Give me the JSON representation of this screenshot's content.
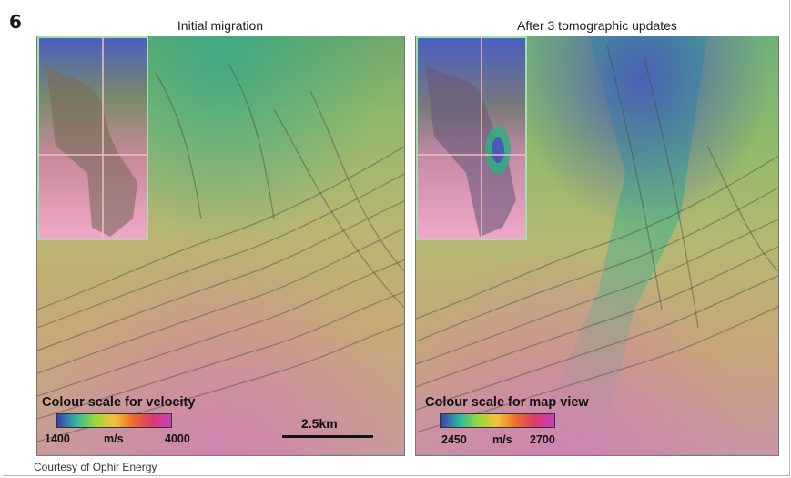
{
  "figure_number": "6",
  "panels": [
    {
      "title": "Initial migration",
      "scale_title": "Colour scale for velocity",
      "scale_min": "1400",
      "scale_unit": "m/s",
      "scale_max": "4000",
      "scale_bar_label": "2.5km"
    },
    {
      "title": "After 3 tomographic updates",
      "scale_title": "Colour scale for map view",
      "scale_min": "2450",
      "scale_unit": "m/s",
      "scale_max": "2700"
    }
  ],
  "credit": "Courtesy of Ophir Energy",
  "colors": {
    "velocity_scale": [
      "#3b3fae",
      "#2fb6a0",
      "#9ad83a",
      "#f2c23a",
      "#ef6a2a",
      "#d83a6f",
      "#c73ec0"
    ],
    "inset_border": "#9fe0b0"
  }
}
